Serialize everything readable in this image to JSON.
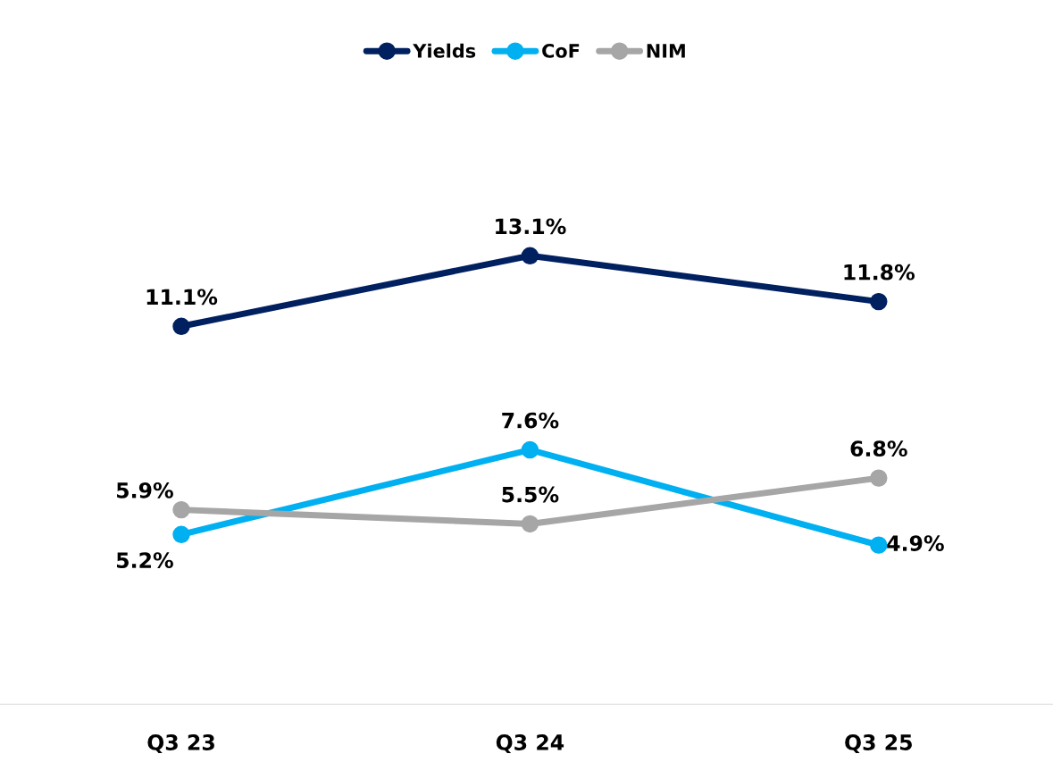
{
  "chart_data": {
    "type": "line",
    "categories": [
      "Q3 23",
      "Q3 24",
      "Q3 25"
    ],
    "series": [
      {
        "name": "Yields",
        "color": "#002060",
        "values": [
          11.1,
          13.1,
          11.8
        ],
        "value_labels": [
          "11.1%",
          "13.1%",
          "11.8%"
        ]
      },
      {
        "name": "CoF",
        "color": "#00b0f0",
        "values": [
          5.2,
          7.6,
          4.9
        ],
        "value_labels": [
          "5.2%",
          "7.6%",
          "4.9%"
        ]
      },
      {
        "name": "NIM",
        "color": "#a6a6a6",
        "values": [
          5.9,
          5.5,
          6.8
        ],
        "value_labels": [
          "5.9%",
          "5.5%",
          "6.8%"
        ]
      }
    ],
    "tick_labels": "x",
    "grid": false,
    "legend": "top",
    "marker": "circle",
    "line_style": "solid"
  }
}
